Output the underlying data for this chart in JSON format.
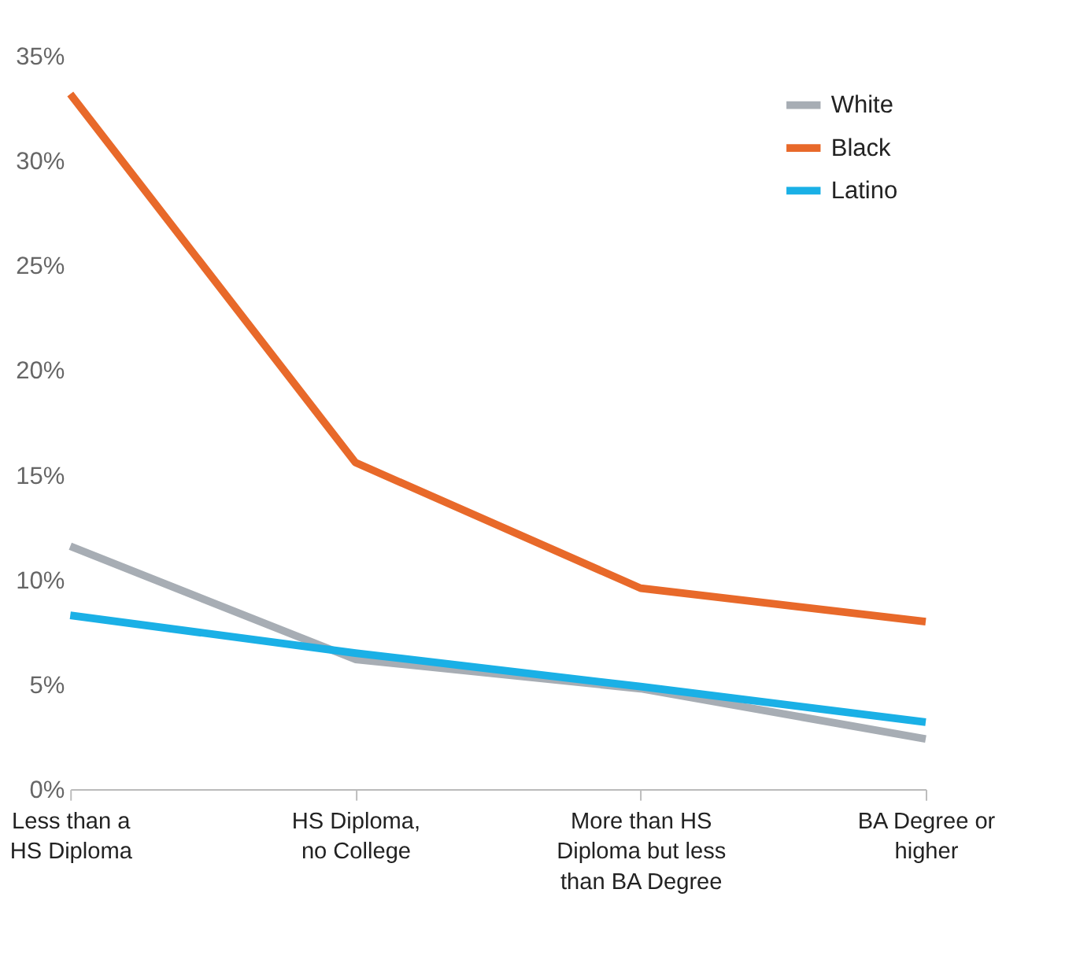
{
  "chart_data": {
    "type": "line",
    "categories": [
      "Less than a HS Diploma",
      "HS Diploma, no College",
      "More than HS Diploma but less than BA Degree",
      "BA Degree or higher"
    ],
    "series": [
      {
        "name": "White",
        "color": "#a7adb4",
        "values": [
          11.6,
          6.2,
          4.8,
          2.4
        ]
      },
      {
        "name": "Black",
        "color": "#e8692a",
        "values": [
          33.2,
          15.6,
          9.6,
          8.0
        ]
      },
      {
        "name": "Latino",
        "color": "#1ab0e6",
        "values": [
          8.3,
          6.5,
          4.9,
          3.2
        ]
      }
    ],
    "ylim": [
      0,
      35
    ],
    "yticks": [
      {
        "value": 0,
        "label": "0%"
      },
      {
        "value": 5,
        "label": "5%"
      },
      {
        "value": 10,
        "label": "10%"
      },
      {
        "value": 15,
        "label": "15%"
      },
      {
        "value": 20,
        "label": "20%"
      },
      {
        "value": 25,
        "label": "25%"
      },
      {
        "value": 30,
        "label": "30%"
      },
      {
        "value": 35,
        "label": "35%"
      }
    ],
    "grid": false,
    "legend": "top right",
    "marker": "none",
    "line_style": "solid"
  }
}
